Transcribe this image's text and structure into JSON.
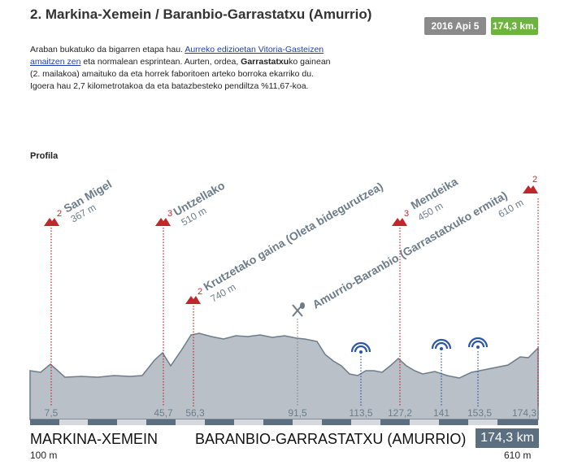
{
  "header": {
    "title": "2. Markina-Xemein / Baranbio-Garrastatxu (Amurrio)",
    "date": "2016 Api 5",
    "distance": "174,3 km."
  },
  "description": {
    "part1": "Araban bukatuko da bigarren etapa hau. ",
    "link": "Aurreko edizioetan Vitoria-Gasteizen amaitzen zen",
    "part2": " eta normalean esprintean. Aurten, ordea, ",
    "bold": "Garrastatxu",
    "part3": "ko gainean (2. mailakoa) amaituko da eta horrek faboritoen arteko borroka ekarriko du. Igoera hau 2,7 kilometrotakoa da eta batazbesteko pendiltza %11,67-koa."
  },
  "profile": {
    "section_title": "Profila",
    "colors": {
      "fill": "#b9c0c8",
      "line": "#6d7c89",
      "climb": "#c0272d",
      "sprint": "#2a55a8",
      "text": "#6d7c89"
    },
    "km_markers": [
      "7,5",
      "45,7",
      "56,3",
      "91,5",
      "113,5",
      "127,2",
      "141",
      "153,5",
      "174,3"
    ],
    "climbs": [
      {
        "name": "San Migel",
        "category": "2",
        "altitude": "367 m",
        "icon": "mountain-icon"
      },
      {
        "name": "Untzellako",
        "category": "3",
        "altitude": "510 m",
        "icon": "mountain-icon"
      },
      {
        "name": "Krutzetako gaina (Oleta bidegurutzea)",
        "category": "2",
        "altitude": "740 m",
        "icon": "mountain-icon"
      },
      {
        "name": "Mendeika",
        "category": "3",
        "altitude": "450 m",
        "icon": "mountain-icon"
      },
      {
        "name": "Amurrio-Baranbio (Garrastatxuko ermita)",
        "category": "2",
        "altitude": "610 m",
        "icon": "mountain-icon"
      }
    ],
    "feed_zone_icon": "feed-zone-icon",
    "sprint_icon": "sprint-icon"
  },
  "footer": {
    "start": "MARKINA-XEMEIN",
    "start_alt": "100 m",
    "finish": "BARANBIO-GARRASTATXU (AMURRIO)",
    "total": "174,3 km",
    "finish_alt": "610 m"
  }
}
